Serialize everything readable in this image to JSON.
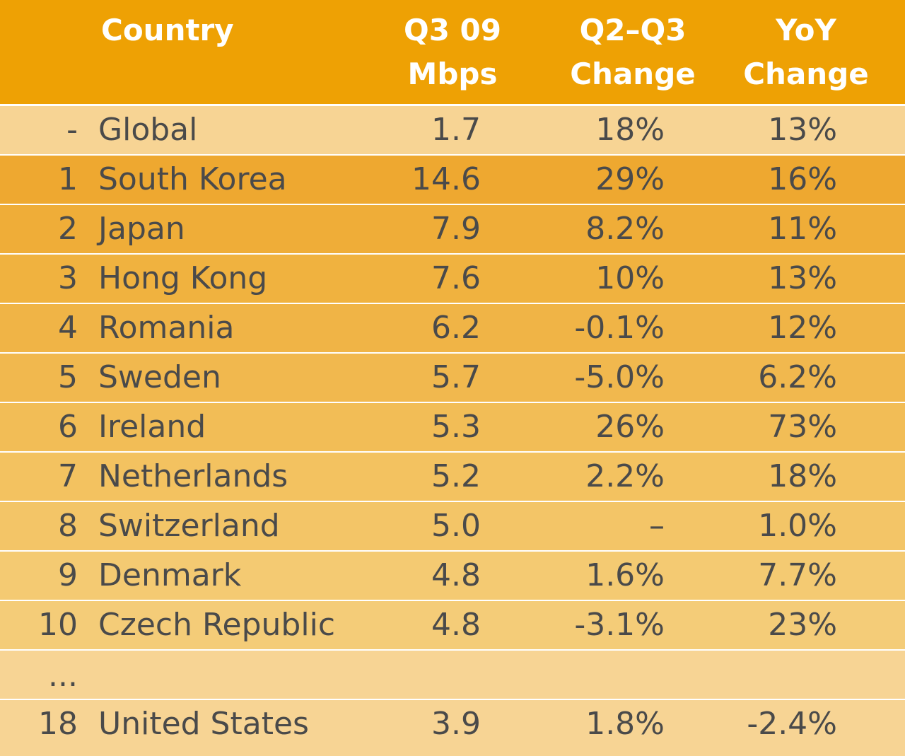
{
  "chart_data": {
    "type": "table",
    "columns": [
      "",
      "Country",
      "Q3 09\nMbps",
      "Q2–Q3\nChange",
      "YoY\nChange"
    ],
    "header": {
      "country": "Country",
      "mbps_line1": "Q3 09",
      "mbps_line2": "Mbps",
      "q2q3_line1": "Q2–Q3",
      "q2q3_line2": "Change",
      "yoy_line1": "YoY",
      "yoy_line2": "Change"
    },
    "rows": [
      {
        "rank": "-",
        "country": "Global",
        "mbps": "1.7",
        "q2q3": "18%",
        "yoy": "13%"
      },
      {
        "rank": "1",
        "country": "South Korea",
        "mbps": "14.6",
        "q2q3": "29%",
        "yoy": "16%"
      },
      {
        "rank": "2",
        "country": "Japan",
        "mbps": "7.9",
        "q2q3": "8.2%",
        "yoy": "11%"
      },
      {
        "rank": "3",
        "country": "Hong Kong",
        "mbps": "7.6",
        "q2q3": "10%",
        "yoy": "13%"
      },
      {
        "rank": "4",
        "country": "Romania",
        "mbps": "6.2",
        "q2q3": "-0.1%",
        "yoy": "12%"
      },
      {
        "rank": "5",
        "country": "Sweden",
        "mbps": "5.7",
        "q2q3": "-5.0%",
        "yoy": "6.2%"
      },
      {
        "rank": "6",
        "country": "Ireland",
        "mbps": "5.3",
        "q2q3": "26%",
        "yoy": "73%"
      },
      {
        "rank": "7",
        "country": "Netherlands",
        "mbps": "5.2",
        "q2q3": "2.2%",
        "yoy": "18%"
      },
      {
        "rank": "8",
        "country": "Switzerland",
        "mbps": "5.0",
        "q2q3": "–",
        "yoy": "1.0%"
      },
      {
        "rank": "9",
        "country": "Denmark",
        "mbps": "4.8",
        "q2q3": "1.6%",
        "yoy": "7.7%"
      },
      {
        "rank": "10",
        "country": "Czech Republic",
        "mbps": "4.8",
        "q2q3": "-3.1%",
        "yoy": "23%"
      },
      {
        "rank": "...",
        "country": "",
        "mbps": "",
        "q2q3": "",
        "yoy": ""
      },
      {
        "rank": "18",
        "country": "United States",
        "mbps": "3.9",
        "q2q3": "1.8%",
        "yoy": "-2.4%"
      }
    ]
  },
  "colors": {
    "header_bg": "#eea104",
    "row_pale": "#f7d494",
    "row_dark": "#eea830",
    "row_light": "#f4cc78",
    "text": "#4a4a4a"
  }
}
